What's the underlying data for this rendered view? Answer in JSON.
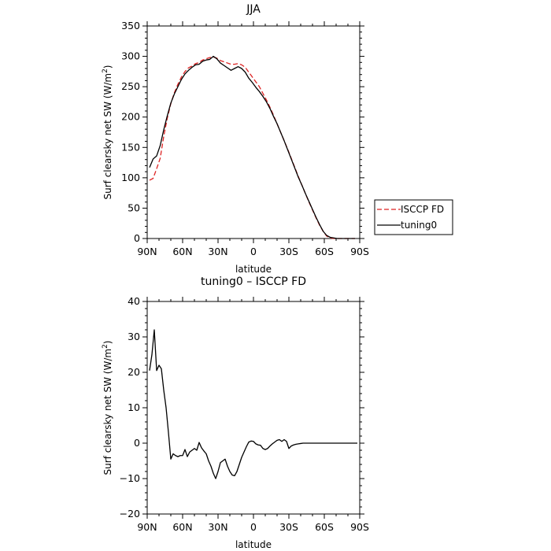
{
  "chart_data": [
    {
      "type": "line",
      "title": "JJA",
      "xlabel": "latitude",
      "ylabel_main": "Surf clearsky net SW (W/m",
      "ylabel_sup": "2",
      "ylabel_tail": ")",
      "xlim": [
        90,
        -90
      ],
      "ylim": [
        0,
        350
      ],
      "x_ticks": [
        90,
        60,
        30,
        0,
        -30,
        -60,
        -90
      ],
      "x_tick_labels": [
        "90N",
        "60N",
        "30N",
        "0",
        "30S",
        "60S",
        "90S"
      ],
      "y_ticks": [
        0,
        50,
        100,
        150,
        200,
        250,
        300,
        350
      ],
      "y_tick_labels": [
        "0",
        "50",
        "100",
        "150",
        "200",
        "250",
        "300",
        "350"
      ],
      "legend": {
        "placement": "right-outside"
      },
      "series": [
        {
          "name": "ISCCP FD",
          "color": "#dd2222",
          "style": "dashed",
          "x": [
            88,
            85,
            82,
            79,
            76,
            73,
            70,
            67,
            64,
            61,
            58,
            55,
            52,
            49,
            46,
            43,
            40,
            37,
            34,
            31,
            28,
            25,
            22,
            19,
            16,
            13,
            10,
            7,
            4,
            1,
            -2,
            -5,
            -8,
            -11,
            -14,
            -17,
            -20,
            -23,
            -26,
            -29,
            -32,
            -35,
            -38,
            -41,
            -44,
            -47,
            -50,
            -53,
            -56,
            -59,
            -62,
            -65,
            -68,
            -71,
            -74,
            -77,
            -80,
            -83,
            -86
          ],
          "values": [
            96,
            99,
            115,
            132,
            168,
            198,
            222,
            240,
            254,
            266,
            275,
            281,
            284,
            288,
            290,
            294,
            296,
            298,
            299,
            297,
            293,
            291,
            289,
            287,
            287,
            288,
            286,
            282,
            274,
            266,
            258,
            250,
            239,
            228,
            216,
            203,
            189,
            175,
            161,
            147,
            132,
            117,
            102,
            88,
            74,
            60,
            47,
            34,
            22,
            12,
            4,
            1,
            0,
            0,
            0,
            0,
            0,
            0,
            0
          ]
        },
        {
          "name": "tuning0",
          "color": "#000000",
          "style": "solid",
          "x": [
            88,
            85,
            82,
            79,
            76,
            73,
            70,
            67,
            64,
            61,
            58,
            55,
            52,
            49,
            46,
            43,
            40,
            37,
            34,
            31,
            28,
            25,
            22,
            19,
            16,
            13,
            10,
            7,
            4,
            1,
            -2,
            -5,
            -8,
            -11,
            -14,
            -17,
            -20,
            -23,
            -26,
            -29,
            -32,
            -35,
            -38,
            -41,
            -44,
            -47,
            -50,
            -53,
            -56,
            -59,
            -62,
            -65,
            -68,
            -71,
            -74,
            -77,
            -80,
            -83,
            -86
          ],
          "values": [
            117,
            131,
            136,
            153,
            179,
            202,
            223,
            238,
            250,
            262,
            271,
            277,
            282,
            286,
            287,
            292,
            294,
            295,
            300,
            296,
            289,
            285,
            281,
            277,
            280,
            283,
            280,
            274,
            264,
            257,
            249,
            242,
            234,
            225,
            214,
            201,
            189,
            175,
            161,
            146,
            131,
            116,
            101,
            88,
            74,
            61,
            48,
            35,
            23,
            12,
            5,
            2,
            1,
            0,
            0,
            0,
            0,
            0,
            0
          ]
        }
      ]
    },
    {
      "type": "line",
      "title": "tuning0 – ISCCP FD",
      "xlabel": "latitude",
      "ylabel_main": "Surf clearsky net SW (W/m",
      "ylabel_sup": "2",
      "ylabel_tail": ")",
      "xlim": [
        90,
        -90
      ],
      "ylim": [
        -20,
        40
      ],
      "x_ticks": [
        90,
        60,
        30,
        0,
        -30,
        -60,
        -90
      ],
      "x_tick_labels": [
        "90N",
        "60N",
        "30N",
        "0",
        "30S",
        "60S",
        "90S"
      ],
      "y_ticks": [
        -20,
        -10,
        0,
        10,
        20,
        30,
        40
      ],
      "y_tick_labels": [
        "−20",
        "−10",
        "0",
        "10",
        "20",
        "30",
        "40"
      ],
      "series": [
        {
          "color": "#000000",
          "style": "solid",
          "x": [
            88,
            86,
            84,
            82,
            80,
            78,
            76,
            74,
            72,
            70,
            68,
            66,
            64,
            62,
            60,
            58,
            56,
            54,
            52,
            50,
            48,
            46,
            44,
            42,
            40,
            38,
            36,
            34,
            32,
            30,
            28,
            26,
            24,
            22,
            20,
            18,
            16,
            14,
            12,
            10,
            8,
            6,
            4,
            2,
            0,
            -2,
            -4,
            -6,
            -8,
            -10,
            -12,
            -14,
            -16,
            -18,
            -20,
            -22,
            -24,
            -26,
            -28,
            -30,
            -32,
            -34,
            -36,
            -38,
            -40,
            -42,
            -44,
            -46,
            -48,
            -50,
            -52,
            -54,
            -56,
            -58,
            -60,
            -62,
            -64,
            -66,
            -68,
            -70,
            -72,
            -74,
            -76,
            -78,
            -80,
            -82,
            -84,
            -86,
            -88
          ],
          "values": [
            20.5,
            25,
            32,
            20.5,
            22,
            21,
            15,
            10,
            3,
            -4.5,
            -3,
            -3.5,
            -3.8,
            -3.5,
            -3.5,
            -1.8,
            -3.8,
            -2.5,
            -2,
            -1.5,
            -2,
            0.2,
            -1.3,
            -2.2,
            -3,
            -5,
            -6.5,
            -8.5,
            -10,
            -8,
            -5.5,
            -5,
            -4.5,
            -6.5,
            -8,
            -9,
            -9.2,
            -8,
            -6,
            -4,
            -2.5,
            -1,
            0.3,
            0.6,
            0.5,
            -0.2,
            -0.5,
            -0.6,
            -1.5,
            -1.8,
            -1.5,
            -0.8,
            -0.2,
            0.3,
            0.8,
            1,
            0.5,
            1,
            0.5,
            -1.5,
            -0.8,
            -0.5,
            -0.3,
            -0.2,
            -0.1,
            0,
            0,
            0,
            0,
            0,
            0,
            0,
            0,
            0,
            0,
            0,
            0,
            0,
            0,
            0,
            0,
            0,
            0,
            0,
            0,
            0,
            0,
            0,
            0
          ]
        }
      ]
    }
  ]
}
